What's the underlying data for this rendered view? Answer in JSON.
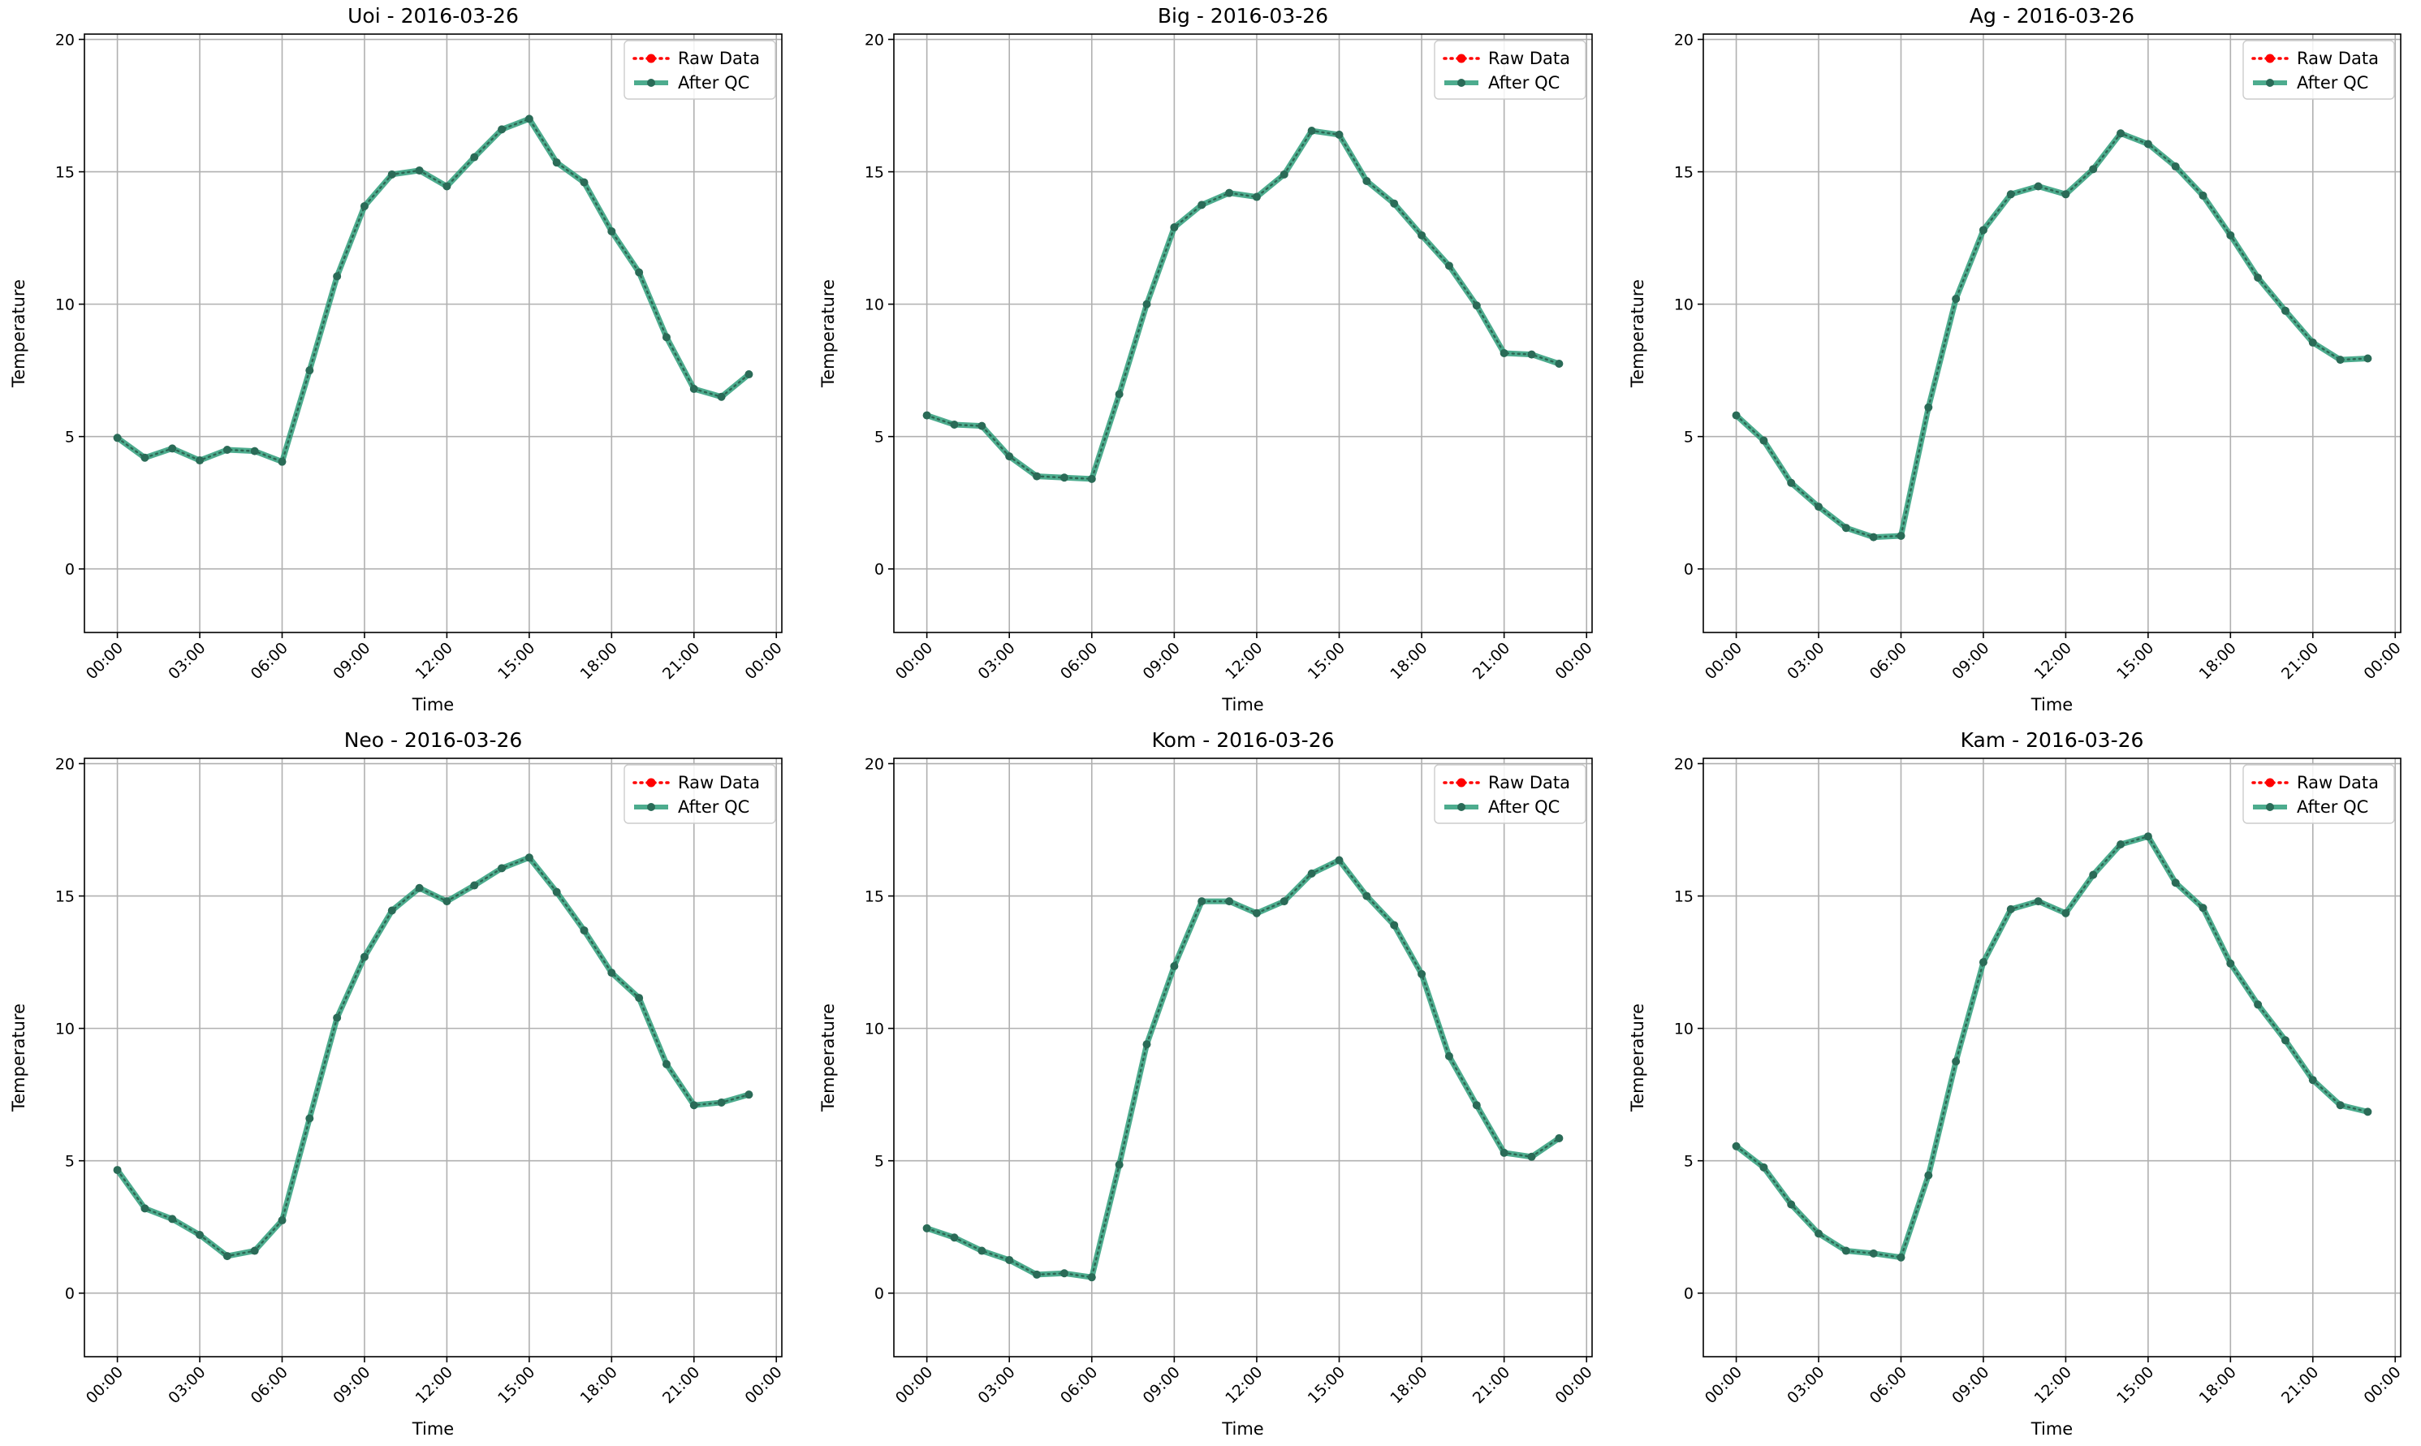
{
  "figure": {
    "colors": {
      "raw": "#ff0000",
      "qc": "#2e9e7a",
      "grid": "#b0b0b0",
      "axes": "#000000"
    },
    "legend": {
      "raw_label": "Raw Data",
      "qc_label": "After QC",
      "placement": "top-right"
    }
  },
  "chart_data": [
    {
      "type": "line",
      "title": "Uoi - 2016-03-26",
      "xlabel": "Time",
      "ylabel": "Temperature",
      "xtick_labels": [
        "00:00",
        "03:00",
        "06:00",
        "09:00",
        "12:00",
        "15:00",
        "18:00",
        "21:00",
        "00:00"
      ],
      "xlim_hours": [
        -1.2,
        24.2
      ],
      "ylim": [
        -2.4,
        20.2
      ],
      "yticks": [
        0,
        5,
        10,
        15,
        20
      ],
      "grid": true,
      "x_hours": [
        0,
        1,
        2,
        3,
        4,
        5,
        6,
        7,
        8,
        9,
        10,
        11,
        12,
        13,
        14,
        15,
        16,
        17,
        18,
        19,
        20,
        21,
        22,
        23
      ],
      "series": [
        {
          "name": "Raw Data",
          "values": [
            4.95,
            4.2,
            4.55,
            4.1,
            4.5,
            4.45,
            4.05,
            7.5,
            11.05,
            13.7,
            14.9,
            15.05,
            14.45,
            15.55,
            16.6,
            17.0,
            15.35,
            14.6,
            12.75,
            11.2,
            8.75,
            6.8,
            6.5,
            7.35
          ]
        },
        {
          "name": "After QC",
          "values": [
            4.95,
            4.2,
            4.55,
            4.1,
            4.5,
            4.45,
            4.05,
            7.5,
            11.05,
            13.7,
            14.9,
            15.05,
            14.45,
            15.55,
            16.6,
            17.0,
            15.35,
            14.6,
            12.75,
            11.2,
            8.75,
            6.8,
            6.5,
            7.35
          ]
        }
      ]
    },
    {
      "type": "line",
      "title": "Big - 2016-03-26",
      "xlabel": "Time",
      "ylabel": "Temperature",
      "xtick_labels": [
        "00:00",
        "03:00",
        "06:00",
        "09:00",
        "12:00",
        "15:00",
        "18:00",
        "21:00",
        "00:00"
      ],
      "xlim_hours": [
        -1.2,
        24.2
      ],
      "ylim": [
        -2.4,
        20.2
      ],
      "yticks": [
        0,
        5,
        10,
        15,
        20
      ],
      "grid": true,
      "x_hours": [
        0,
        1,
        2,
        3,
        4,
        5,
        6,
        7,
        8,
        9,
        10,
        11,
        12,
        13,
        14,
        15,
        16,
        17,
        18,
        19,
        20,
        21,
        22,
        23
      ],
      "series": [
        {
          "name": "Raw Data",
          "values": [
            5.8,
            5.45,
            5.4,
            4.25,
            3.5,
            3.45,
            3.4,
            6.6,
            10.0,
            12.9,
            13.75,
            14.2,
            14.05,
            14.9,
            16.55,
            16.4,
            14.65,
            13.8,
            12.6,
            11.45,
            9.95,
            8.15,
            8.1,
            7.75
          ]
        },
        {
          "name": "After QC",
          "values": [
            5.8,
            5.45,
            5.4,
            4.25,
            3.5,
            3.45,
            3.4,
            6.6,
            10.0,
            12.9,
            13.75,
            14.2,
            14.05,
            14.9,
            16.55,
            16.4,
            14.65,
            13.8,
            12.6,
            11.45,
            9.95,
            8.15,
            8.1,
            7.75
          ]
        }
      ]
    },
    {
      "type": "line",
      "title": "Ag - 2016-03-26",
      "xlabel": "Time",
      "ylabel": "Temperature",
      "xtick_labels": [
        "00:00",
        "03:00",
        "06:00",
        "09:00",
        "12:00",
        "15:00",
        "18:00",
        "21:00",
        "00:00"
      ],
      "xlim_hours": [
        -1.2,
        24.2
      ],
      "ylim": [
        -2.4,
        20.2
      ],
      "yticks": [
        0,
        5,
        10,
        15,
        20
      ],
      "grid": true,
      "x_hours": [
        0,
        1,
        2,
        3,
        4,
        5,
        6,
        7,
        8,
        9,
        10,
        11,
        12,
        13,
        14,
        15,
        16,
        17,
        18,
        19,
        20,
        21,
        22,
        23
      ],
      "series": [
        {
          "name": "Raw Data",
          "values": [
            5.8,
            4.85,
            3.25,
            2.35,
            1.55,
            1.2,
            1.25,
            6.1,
            10.2,
            12.8,
            14.15,
            14.45,
            14.15,
            15.1,
            16.45,
            16.05,
            15.2,
            14.1,
            12.6,
            11.0,
            9.75,
            8.55,
            7.9,
            7.95
          ]
        },
        {
          "name": "After QC",
          "values": [
            5.8,
            4.85,
            3.25,
            2.35,
            1.55,
            1.2,
            1.25,
            6.1,
            10.2,
            12.8,
            14.15,
            14.45,
            14.15,
            15.1,
            16.45,
            16.05,
            15.2,
            14.1,
            12.6,
            11.0,
            9.75,
            8.55,
            7.9,
            7.95
          ]
        }
      ]
    },
    {
      "type": "line",
      "title": "Neo - 2016-03-26",
      "xlabel": "Time",
      "ylabel": "Temperature",
      "xtick_labels": [
        "00:00",
        "03:00",
        "06:00",
        "09:00",
        "12:00",
        "15:00",
        "18:00",
        "21:00",
        "00:00"
      ],
      "xlim_hours": [
        -1.2,
        24.2
      ],
      "ylim": [
        -2.4,
        20.2
      ],
      "yticks": [
        0,
        5,
        10,
        15,
        20
      ],
      "grid": true,
      "x_hours": [
        0,
        1,
        2,
        3,
        4,
        5,
        6,
        7,
        8,
        9,
        10,
        11,
        12,
        13,
        14,
        15,
        16,
        17,
        18,
        19,
        20,
        21,
        22,
        23
      ],
      "series": [
        {
          "name": "Raw Data",
          "values": [
            4.65,
            3.2,
            2.8,
            2.2,
            1.4,
            1.6,
            2.75,
            6.6,
            10.4,
            12.7,
            14.45,
            15.3,
            14.8,
            15.4,
            16.05,
            16.45,
            15.15,
            13.7,
            12.1,
            11.15,
            8.65,
            7.1,
            7.2,
            7.5
          ]
        },
        {
          "name": "After QC",
          "values": [
            4.65,
            3.2,
            2.8,
            2.2,
            1.4,
            1.6,
            2.75,
            6.6,
            10.4,
            12.7,
            14.45,
            15.3,
            14.8,
            15.4,
            16.05,
            16.45,
            15.15,
            13.7,
            12.1,
            11.15,
            8.65,
            7.1,
            7.2,
            7.5
          ]
        }
      ]
    },
    {
      "type": "line",
      "title": "Kom - 2016-03-26",
      "xlabel": "Time",
      "ylabel": "Temperature",
      "xtick_labels": [
        "00:00",
        "03:00",
        "06:00",
        "09:00",
        "12:00",
        "15:00",
        "18:00",
        "21:00",
        "00:00"
      ],
      "xlim_hours": [
        -1.2,
        24.2
      ],
      "ylim": [
        -2.4,
        20.2
      ],
      "yticks": [
        0,
        5,
        10,
        15,
        20
      ],
      "grid": true,
      "x_hours": [
        0,
        1,
        2,
        3,
        4,
        5,
        6,
        7,
        8,
        9,
        10,
        11,
        12,
        13,
        14,
        15,
        16,
        17,
        18,
        19,
        20,
        21,
        22,
        23
      ],
      "series": [
        {
          "name": "Raw Data",
          "values": [
            2.45,
            2.1,
            1.6,
            1.25,
            0.7,
            0.75,
            0.6,
            4.85,
            9.4,
            12.35,
            14.8,
            14.8,
            14.35,
            14.8,
            15.85,
            16.35,
            15.0,
            13.9,
            12.05,
            8.95,
            7.1,
            5.3,
            5.15,
            5.85
          ]
        },
        {
          "name": "After QC",
          "values": [
            2.45,
            2.1,
            1.6,
            1.25,
            0.7,
            0.75,
            0.6,
            4.85,
            9.4,
            12.35,
            14.8,
            14.8,
            14.35,
            14.8,
            15.85,
            16.35,
            15.0,
            13.9,
            12.05,
            8.95,
            7.1,
            5.3,
            5.15,
            5.85
          ]
        }
      ]
    },
    {
      "type": "line",
      "title": "Kam - 2016-03-26",
      "xlabel": "Time",
      "ylabel": "Temperature",
      "xtick_labels": [
        "00:00",
        "03:00",
        "06:00",
        "09:00",
        "12:00",
        "15:00",
        "18:00",
        "21:00",
        "00:00"
      ],
      "xlim_hours": [
        -1.2,
        24.2
      ],
      "ylim": [
        -2.4,
        20.2
      ],
      "yticks": [
        0,
        5,
        10,
        15,
        20
      ],
      "grid": true,
      "x_hours": [
        0,
        1,
        2,
        3,
        4,
        5,
        6,
        7,
        8,
        9,
        10,
        11,
        12,
        13,
        14,
        15,
        16,
        17,
        18,
        19,
        20,
        21,
        22,
        23
      ],
      "series": [
        {
          "name": "Raw Data",
          "values": [
            5.55,
            4.75,
            3.35,
            2.25,
            1.6,
            1.5,
            1.35,
            4.45,
            8.75,
            12.5,
            14.5,
            14.8,
            14.35,
            15.8,
            16.95,
            17.25,
            15.5,
            14.55,
            12.45,
            10.9,
            9.55,
            8.05,
            7.1,
            6.85
          ]
        },
        {
          "name": "After QC",
          "values": [
            5.55,
            4.75,
            3.35,
            2.25,
            1.6,
            1.5,
            1.35,
            4.45,
            8.75,
            12.5,
            14.5,
            14.8,
            14.35,
            15.8,
            16.95,
            17.25,
            15.5,
            14.55,
            12.45,
            10.9,
            9.55,
            8.05,
            7.1,
            6.85
          ]
        }
      ]
    }
  ]
}
